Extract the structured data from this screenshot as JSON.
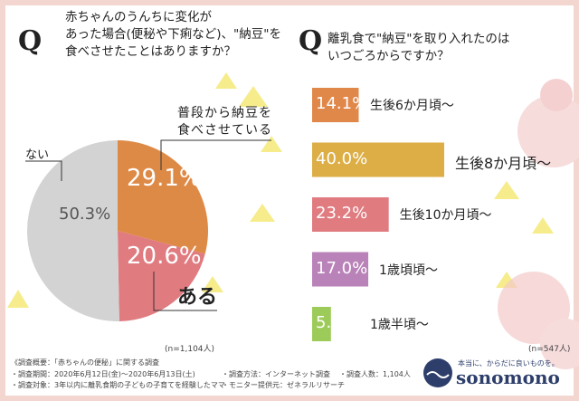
{
  "chart_data": [
    {
      "type": "pie",
      "marker": "Q",
      "title": [
        "赤ちゃんのうんちに変化が",
        "あった場合(便秘や下痢など)、\"納豆\"を",
        "食べさせたことはありますか？"
      ],
      "categories": [
        "普段から納豆を食べさせている",
        "ある",
        "ない"
      ],
      "values": [
        29.1,
        20.6,
        50.3
      ],
      "value_labels": [
        "29.1%",
        "20.6%",
        "50.3%"
      ],
      "colors": [
        "#de8a47",
        "#e07b80",
        "#d3d3d3"
      ],
      "note": "(n=1,104人)"
    },
    {
      "type": "bar",
      "marker": "Q",
      "title": [
        "離乳食で\"納豆\"を取り入れたのは",
        "いつごろからですか？"
      ],
      "categories": [
        "生後6か月頃～",
        "生後8か月頃～",
        "生後10か月頃～",
        "1歳頃頃～",
        "1歳半頃～"
      ],
      "values": [
        14.1,
        40.0,
        23.2,
        17.0,
        5.7
      ],
      "value_labels": [
        "14.1%",
        "40.0%",
        "23.2%",
        "17.0%",
        "5.7%"
      ],
      "colors": [
        "#e0884a",
        "#dcae45",
        "#e07b80",
        "#b982b8",
        "#9dcb5a"
      ],
      "note": "(n=547人)"
    }
  ],
  "footer": {
    "heading": "《調査概要：「赤ちゃんの便秘」に関する調査",
    "items": [
      "・調査期間：2020年6月12日(金)～2020年6月13日(土)",
      "・調査方法：インターネット調査",
      "・調査人数：1,104人",
      "・調査対象：3年以内に離乳食期の子どもの子育てを経験したママ",
      "・モニター提供元：ゼネラルリサーチ"
    ],
    "tagline": "本当に、からだに良いものを。",
    "logo": "sonomono"
  }
}
